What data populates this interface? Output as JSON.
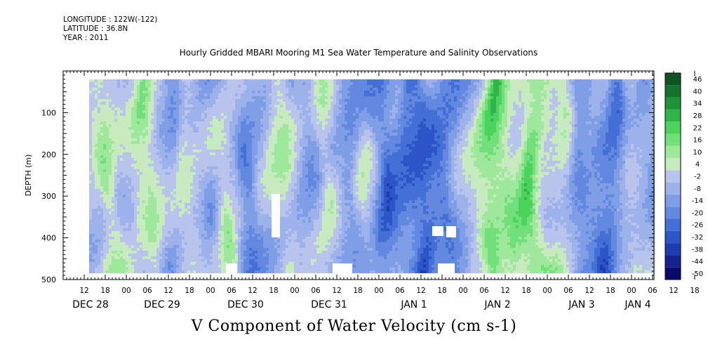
{
  "header": {
    "longitude": "LONGITUDE : 122W(-122)",
    "latitude": "LATITUDE : 36.8N",
    "year": "YEAR : 2011"
  },
  "title": "Hourly Gridded MBARI Mooring M1 Sea Water Temperature and Salinity Observations",
  "footer_title": "V Component of Water Velocity (cm s-1)",
  "chart_data": {
    "type": "heatmap",
    "variable": "V Component of Water Velocity",
    "units": "cm s-1",
    "ylabel": "DEPTH (m)",
    "y_reversed": true,
    "ylim": [
      0,
      500
    ],
    "y_ticks": [
      100,
      200,
      300,
      400,
      500
    ],
    "data_depth_range": [
      20,
      490
    ],
    "x_hour_ticks": [
      "12",
      "18",
      "00",
      "06",
      "12",
      "18",
      "00",
      "06",
      "12",
      "18",
      "00",
      "06",
      "12",
      "18",
      "00",
      "06",
      "12",
      "18",
      "00",
      "06",
      "12",
      "18",
      "00",
      "06",
      "12",
      "18",
      "00",
      "06",
      "12",
      "18",
      "00",
      "06"
    ],
    "x_day_labels": [
      "DEC 28",
      "DEC 29",
      "DEC 30",
      "DEC 31",
      "JAN 1",
      "JAN 2",
      "JAN 3",
      "JAN 4"
    ],
    "colorbar": {
      "labels": [
        "-50",
        "-44",
        "-38",
        "-32",
        "-26",
        "-20",
        "-14",
        "-8",
        "-2",
        "4",
        "10",
        "16",
        "22",
        "28",
        "34",
        "40",
        "46"
      ],
      "levels": [
        -50,
        -44,
        -38,
        -32,
        -26,
        -20,
        -14,
        -8,
        -2,
        4,
        10,
        16,
        22,
        28,
        34,
        40,
        46
      ],
      "colors": [
        "#0a0a6b",
        "#16238f",
        "#1f3bb0",
        "#2c55c8",
        "#4470d6",
        "#6288df",
        "#7f9ee6",
        "#9db2ea",
        "#b9c4ec",
        "#c7ebbf",
        "#9ee89c",
        "#72e07a",
        "#4cd35e",
        "#30b54a",
        "#1f933a",
        "#15722d",
        "#0e5423"
      ]
    }
  }
}
